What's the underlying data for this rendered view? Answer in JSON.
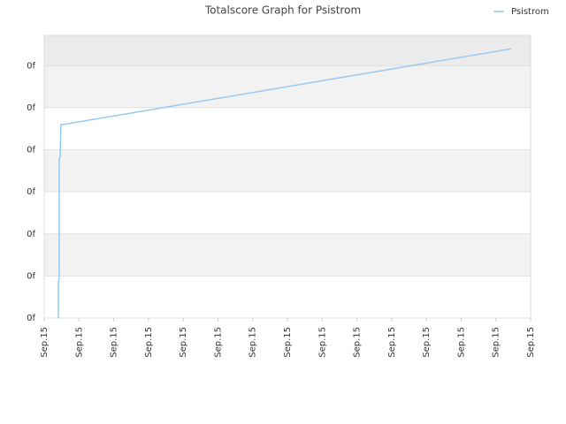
{
  "chart_data": {
    "type": "line",
    "title": "Totalscore Graph for Psistrom",
    "x": [
      0.41,
      0.41,
      0.43,
      0.43,
      0.46,
      0.48,
      13.44
    ],
    "series": [
      {
        "name": "Psistrom",
        "color": "#99c8f0",
        "values": [
          0,
          0.88,
          0.92,
          3.78,
          3.82,
          4.59,
          6.4
        ]
      }
    ],
    "xlim": [
      0,
      14
    ],
    "xticks": [
      {
        "value": 0,
        "label": "Sep.15"
      },
      {
        "value": 1,
        "label": "Sep.15"
      },
      {
        "value": 2,
        "label": "Sep.15"
      },
      {
        "value": 3,
        "label": "Sep.15"
      },
      {
        "value": 4,
        "label": "Sep.15"
      },
      {
        "value": 5,
        "label": "Sep.15"
      },
      {
        "value": 6,
        "label": "Sep.15"
      },
      {
        "value": 7,
        "label": "Sep.15"
      },
      {
        "value": 8,
        "label": "Sep.15"
      },
      {
        "value": 9,
        "label": "Sep.15"
      },
      {
        "value": 10,
        "label": "Sep.15"
      },
      {
        "value": 11,
        "label": "Sep.15"
      },
      {
        "value": 12,
        "label": "Sep.15"
      },
      {
        "value": 13,
        "label": "Sep.15"
      },
      {
        "value": 14,
        "label": "Sep.15"
      }
    ],
    "ylim": [
      0,
      6.72
    ],
    "yticks": [
      {
        "value": 0,
        "label": "0f"
      },
      {
        "value": 1,
        "label": "0f"
      },
      {
        "value": 2,
        "label": "0f"
      },
      {
        "value": 3,
        "label": "0f"
      },
      {
        "value": 4,
        "label": "0f"
      },
      {
        "value": 5,
        "label": "0f"
      },
      {
        "value": 6,
        "label": "0f"
      }
    ],
    "grid": true,
    "legend": "top-right"
  }
}
